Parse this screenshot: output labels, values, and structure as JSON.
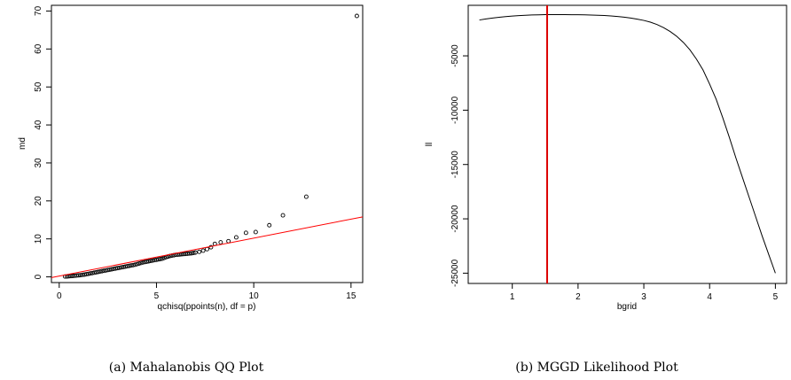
{
  "chart_data": [
    {
      "id": "qq",
      "type": "scatter",
      "caption": "(a) Mahalanobis QQ Plot",
      "xlabel": "qchisq(ppoints(n), df = p)",
      "ylabel": "md",
      "xlim": [
        -0.4,
        15.6
      ],
      "ylim": [
        -1.5,
        71.5
      ],
      "xticks": [
        0,
        5,
        10,
        15
      ],
      "yticks": [
        0,
        10,
        20,
        30,
        40,
        50,
        60,
        70
      ],
      "grid": false,
      "points": [
        [
          0.3,
          0.1
        ],
        [
          0.4,
          0.1
        ],
        [
          0.5,
          0.15
        ],
        [
          0.6,
          0.2
        ],
        [
          0.7,
          0.25
        ],
        [
          0.8,
          0.3
        ],
        [
          0.9,
          0.35
        ],
        [
          1.0,
          0.4
        ],
        [
          1.1,
          0.45
        ],
        [
          1.2,
          0.55
        ],
        [
          1.3,
          0.6
        ],
        [
          1.4,
          0.7
        ],
        [
          1.5,
          0.8
        ],
        [
          1.6,
          0.9
        ],
        [
          1.7,
          1.0
        ],
        [
          1.8,
          1.1
        ],
        [
          1.9,
          1.2
        ],
        [
          2.0,
          1.3
        ],
        [
          2.1,
          1.4
        ],
        [
          2.2,
          1.5
        ],
        [
          2.3,
          1.6
        ],
        [
          2.4,
          1.7
        ],
        [
          2.5,
          1.8
        ],
        [
          2.6,
          1.9
        ],
        [
          2.7,
          2.0
        ],
        [
          2.8,
          2.1
        ],
        [
          2.9,
          2.2
        ],
        [
          3.0,
          2.3
        ],
        [
          3.1,
          2.4
        ],
        [
          3.2,
          2.5
        ],
        [
          3.3,
          2.6
        ],
        [
          3.4,
          2.7
        ],
        [
          3.5,
          2.8
        ],
        [
          3.6,
          2.9
        ],
        [
          3.7,
          3.0
        ],
        [
          3.8,
          3.1
        ],
        [
          3.9,
          3.2
        ],
        [
          4.0,
          3.35
        ],
        [
          4.1,
          3.5
        ],
        [
          4.2,
          3.65
        ],
        [
          4.3,
          3.8
        ],
        [
          4.4,
          3.9
        ],
        [
          4.5,
          4.0
        ],
        [
          4.6,
          4.1
        ],
        [
          4.7,
          4.2
        ],
        [
          4.8,
          4.3
        ],
        [
          4.9,
          4.4
        ],
        [
          5.0,
          4.5
        ],
        [
          5.1,
          4.6
        ],
        [
          5.2,
          4.7
        ],
        [
          5.3,
          4.8
        ],
        [
          5.4,
          5.0
        ],
        [
          5.5,
          5.2
        ],
        [
          5.6,
          5.35
        ],
        [
          5.7,
          5.5
        ],
        [
          5.8,
          5.6
        ],
        [
          5.9,
          5.7
        ],
        [
          6.0,
          5.8
        ],
        [
          6.1,
          5.85
        ],
        [
          6.2,
          5.9
        ],
        [
          6.3,
          5.95
        ],
        [
          6.4,
          6.0
        ],
        [
          6.5,
          6.05
        ],
        [
          6.6,
          6.1
        ],
        [
          6.7,
          6.15
        ],
        [
          6.8,
          6.2
        ],
        [
          6.9,
          6.3
        ],
        [
          7.0,
          6.4
        ],
        [
          7.2,
          6.6
        ],
        [
          7.4,
          6.9
        ],
        [
          7.6,
          7.3
        ],
        [
          7.8,
          7.8
        ],
        [
          8.0,
          8.7
        ],
        [
          8.3,
          9.1
        ],
        [
          8.7,
          9.4
        ],
        [
          9.1,
          10.4
        ],
        [
          9.6,
          11.6
        ],
        [
          10.1,
          11.8
        ],
        [
          10.8,
          13.6
        ],
        [
          11.5,
          16.2
        ],
        [
          12.7,
          21.1
        ],
        [
          15.3,
          68.7
        ]
      ],
      "reference_line": {
        "intercept": 0.2,
        "slope": 1.0,
        "color": "#ff0000"
      },
      "point_color": "#000000"
    },
    {
      "id": "likelihood",
      "type": "line",
      "caption": "(b) MGGD Likelihood Plot",
      "xlabel": "bgrid",
      "ylabel": "ll",
      "xlim": [
        0.33,
        5.17
      ],
      "ylim": [
        -25946,
        -350
      ],
      "xticks": [
        1,
        2,
        3,
        4,
        5
      ],
      "yticks": [
        -5000,
        -10000,
        -15000,
        -20000,
        -25000
      ],
      "grid": false,
      "x": [
        0.5,
        0.6,
        0.7,
        0.8,
        0.9,
        1.0,
        1.1,
        1.2,
        1.3,
        1.4,
        1.5,
        1.6,
        1.7,
        1.8,
        1.9,
        2.0,
        2.1,
        2.2,
        2.3,
        2.4,
        2.5,
        2.6,
        2.7,
        2.8,
        2.9,
        3.0,
        3.1,
        3.2,
        3.3,
        3.4,
        3.5,
        3.6,
        3.7,
        3.8,
        3.9,
        4.0,
        4.1,
        4.2,
        4.3,
        4.4,
        4.5,
        4.6,
        4.7,
        4.8,
        4.9,
        5.0
      ],
      "y": [
        -1700,
        -1600,
        -1520,
        -1450,
        -1390,
        -1340,
        -1300,
        -1265,
        -1240,
        -1222,
        -1210,
        -1205,
        -1205,
        -1208,
        -1213,
        -1220,
        -1230,
        -1245,
        -1265,
        -1290,
        -1330,
        -1380,
        -1440,
        -1520,
        -1620,
        -1740,
        -1900,
        -2120,
        -2400,
        -2760,
        -3200,
        -3760,
        -4440,
        -5300,
        -6300,
        -7600,
        -9000,
        -10700,
        -12500,
        -14400,
        -16200,
        -18000,
        -19800,
        -21600,
        -23300,
        -25000
      ],
      "line_color": "#000000",
      "vline": {
        "x": 1.53,
        "color": "#dd0000"
      }
    }
  ]
}
